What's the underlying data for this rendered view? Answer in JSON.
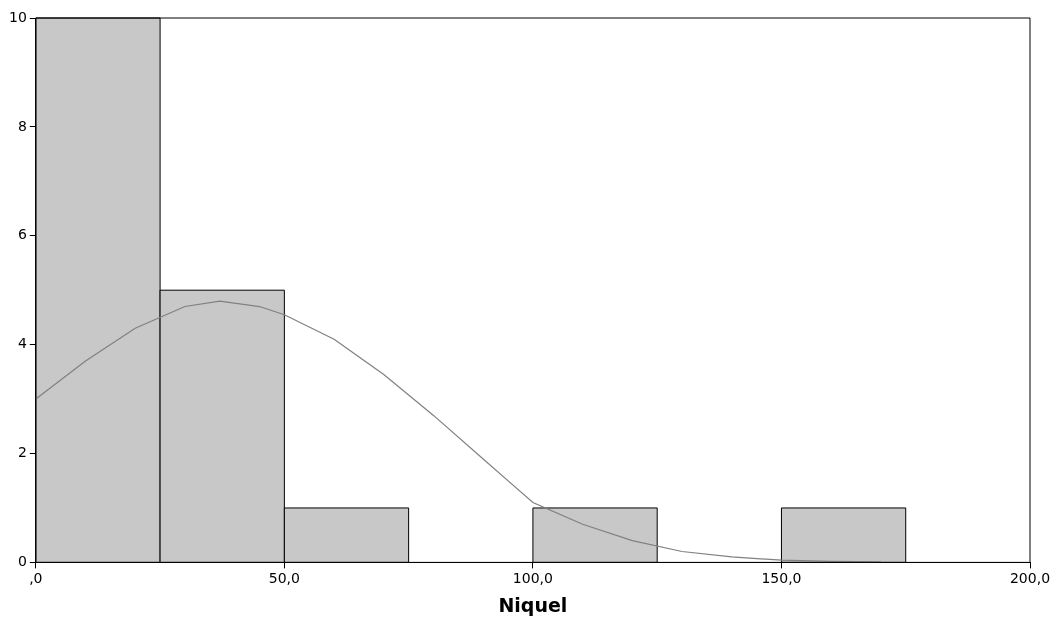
{
  "chart_data": {
    "type": "histogram",
    "xlabel": "Niquel",
    "bins": [
      0,
      25,
      50,
      75,
      100,
      125,
      150,
      175
    ],
    "values": [
      10,
      5,
      1,
      0,
      1,
      0,
      1
    ],
    "color": "#c8c8c8",
    "xlim": [
      0,
      200
    ],
    "xticks": [
      {
        "value": 0,
        "label": ",0"
      },
      {
        "value": 50,
        "label": "50,0"
      },
      {
        "value": 100,
        "label": "100,0"
      },
      {
        "value": 150,
        "label": "150,0"
      },
      {
        "value": 200,
        "label": "200,0"
      }
    ],
    "ylim": [
      0,
      10
    ],
    "yticks": [
      0,
      2,
      4,
      6,
      8,
      10
    ],
    "grid": false,
    "legend": false,
    "series": [
      {
        "type": "line",
        "color": "#808080",
        "x": [
          0,
          10,
          20,
          30,
          37,
          45,
          50,
          60,
          70,
          80,
          90,
          100,
          110,
          120,
          130,
          140,
          150,
          160,
          170
        ],
        "values": [
          3.0,
          3.7,
          4.3,
          4.7,
          4.8,
          4.7,
          4.55,
          4.1,
          3.45,
          2.7,
          1.9,
          1.1,
          0.7,
          0.4,
          0.2,
          0.1,
          0.04,
          0.02,
          0.01
        ]
      }
    ]
  }
}
